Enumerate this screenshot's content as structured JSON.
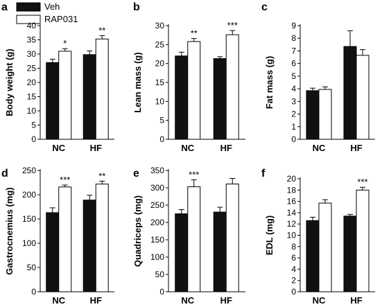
{
  "legend": {
    "items": [
      {
        "label": "Veh",
        "color": "#111111"
      },
      {
        "label": "RAP031",
        "color": "#ffffff"
      }
    ]
  },
  "chart_data": [
    {
      "type": "bar",
      "panel": "a",
      "ylabel": "Body weight (g)",
      "categories": [
        "NC",
        "HF"
      ],
      "ylim": [
        0,
        40
      ],
      "yticks": [
        0,
        5,
        10,
        15,
        20,
        25,
        30,
        35,
        40
      ],
      "series": [
        {
          "name": "Veh",
          "color": "#111111",
          "values": [
            27.0,
            29.8
          ],
          "errors": [
            1.2,
            1.3
          ]
        },
        {
          "name": "RAP031",
          "color": "#ffffff",
          "values": [
            31.0,
            35.3
          ],
          "errors": [
            0.9,
            1.2
          ]
        }
      ],
      "significance": [
        {
          "category": "NC",
          "label": "*"
        },
        {
          "category": "HF",
          "label": "**"
        }
      ]
    },
    {
      "type": "bar",
      "panel": "b",
      "ylabel": "Lean mass (g)",
      "categories": [
        "NC",
        "HF"
      ],
      "ylim": [
        0,
        30
      ],
      "yticks": [
        0,
        5,
        10,
        15,
        20,
        25,
        30
      ],
      "series": [
        {
          "name": "Veh",
          "color": "#111111",
          "values": [
            22.0,
            21.3
          ],
          "errors": [
            1.0,
            0.5
          ]
        },
        {
          "name": "RAP031",
          "color": "#ffffff",
          "values": [
            25.8,
            27.6
          ],
          "errors": [
            0.8,
            1.1
          ]
        }
      ],
      "significance": [
        {
          "category": "NC",
          "label": "**"
        },
        {
          "category": "HF",
          "label": "***"
        }
      ]
    },
    {
      "type": "bar",
      "panel": "c",
      "ylabel": "Fat mass (g)",
      "categories": [
        "NC",
        "HF"
      ],
      "ylim": [
        0,
        9
      ],
      "yticks": [
        0,
        1,
        2,
        3,
        4,
        5,
        6,
        7,
        8,
        9
      ],
      "series": [
        {
          "name": "Veh",
          "color": "#111111",
          "values": [
            3.85,
            7.35
          ],
          "errors": [
            0.2,
            1.25
          ]
        },
        {
          "name": "RAP031",
          "color": "#ffffff",
          "values": [
            3.95,
            6.65
          ],
          "errors": [
            0.2,
            0.45
          ]
        }
      ],
      "significance": []
    },
    {
      "type": "bar",
      "panel": "d",
      "ylabel": "Gastrocnemius (mg)",
      "categories": [
        "NC",
        "HF"
      ],
      "ylim": [
        0,
        250
      ],
      "yticks": [
        0,
        50,
        100,
        150,
        200,
        250
      ],
      "series": [
        {
          "name": "Veh",
          "color": "#111111",
          "values": [
            163,
            189
          ],
          "errors": [
            10,
            10
          ]
        },
        {
          "name": "RAP031",
          "color": "#ffffff",
          "values": [
            216,
            222
          ],
          "errors": [
            4,
            6
          ]
        }
      ],
      "significance": [
        {
          "category": "NC",
          "label": "***"
        },
        {
          "category": "HF",
          "label": "**"
        }
      ]
    },
    {
      "type": "bar",
      "panel": "e",
      "ylabel": "Quadriceps (mg)",
      "categories": [
        "NC",
        "HF"
      ],
      "ylim": [
        0,
        350
      ],
      "yticks": [
        0,
        50,
        100,
        150,
        200,
        250,
        300,
        350
      ],
      "series": [
        {
          "name": "Veh",
          "color": "#111111",
          "values": [
            225,
            230
          ],
          "errors": [
            12,
            14
          ]
        },
        {
          "name": "RAP031",
          "color": "#ffffff",
          "values": [
            303,
            311
          ],
          "errors": [
            20,
            16
          ]
        }
      ],
      "significance": [
        {
          "category": "NC",
          "label": "***"
        }
      ]
    },
    {
      "type": "bar",
      "panel": "f",
      "ylabel": "EDL (mg)",
      "categories": [
        "NC",
        "HF"
      ],
      "ylim": [
        0,
        20
      ],
      "yticks": [
        0,
        2,
        4,
        6,
        8,
        10,
        12,
        14,
        16,
        18,
        20
      ],
      "series": [
        {
          "name": "Veh",
          "color": "#111111",
          "values": [
            12.6,
            13.4
          ],
          "errors": [
            0.6,
            0.3
          ]
        },
        {
          "name": "RAP031",
          "color": "#ffffff",
          "values": [
            15.7,
            18.0
          ],
          "errors": [
            0.6,
            0.5
          ]
        }
      ],
      "significance": [
        {
          "category": "HF",
          "label": "***"
        }
      ]
    }
  ]
}
